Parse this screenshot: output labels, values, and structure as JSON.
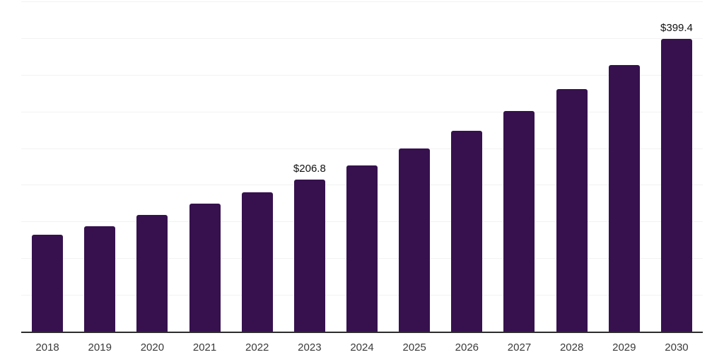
{
  "chart_data": {
    "type": "bar",
    "title": "",
    "xlabel": "",
    "ylabel": "",
    "categories": [
      "2018",
      "2019",
      "2020",
      "2021",
      "2022",
      "2023",
      "2024",
      "2025",
      "2026",
      "2027",
      "2028",
      "2029",
      "2030"
    ],
    "values": [
      132.5,
      144.0,
      159.4,
      174.6,
      189.8,
      206.8,
      226.8,
      249.5,
      273.3,
      300.8,
      330.4,
      363.6,
      399.4
    ],
    "value_labels": [
      "",
      "",
      "",
      "",
      "",
      "$206.8",
      "",
      "",
      "",
      "",
      "",
      "",
      "$399.4"
    ],
    "ylim": [
      0,
      450
    ],
    "gridline_step": 50,
    "grid": "horizontal only, no y-axis tick labels",
    "legend": "none",
    "colors": {
      "bar": "#36114e",
      "gridline": "#f2f2f2",
      "axis_line": "#2d2d2d",
      "tick_label": "#3a3a3a",
      "value_label": "#111111",
      "background": "#ffffff"
    }
  }
}
